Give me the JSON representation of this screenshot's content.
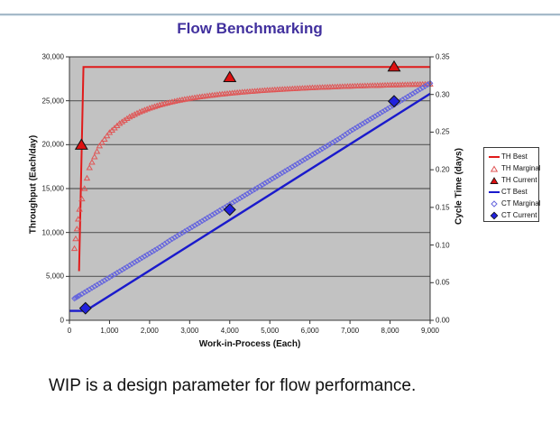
{
  "caption": "WIP is a design parameter for flow performance.",
  "colors": {
    "title": "#41309e",
    "plot_bg": "#c2c2c2",
    "grid": "#5a5a5a",
    "plot_border": "#3a3a3a",
    "red": "#e01a1a",
    "red_light": "#e05555",
    "blue": "#1a1acc",
    "blue_light": "#6666dd"
  },
  "chart_data": {
    "type": "line",
    "title": "Flow Benchmarking",
    "grid": "horizontal",
    "legend_position": "right",
    "x_axis": {
      "label": "Work-in-Process (Each)",
      "min": 0,
      "max": 9000,
      "tick_labels": [
        "0",
        "1,000",
        "2,000",
        "3,000",
        "4,000",
        "5,000",
        "6,000",
        "7,000",
        "8,000",
        "9,000"
      ]
    },
    "y_left_axis": {
      "label": "Throughput (Each/day)",
      "min": 0,
      "max": 30000,
      "tick_labels": [
        "0",
        "5,000",
        "10,000",
        "15,000",
        "20,000",
        "25,000",
        "30,000"
      ]
    },
    "y_right_axis": {
      "label": "Cycle Time (days)",
      "min": 0,
      "max": 0.35,
      "tick_labels": [
        "0.00",
        "0.05",
        "0.10",
        "0.15",
        "0.20",
        "0.25",
        "0.30",
        "0.35"
      ]
    },
    "series": [
      {
        "name": "TH Best",
        "axis": "left",
        "style": "line",
        "marker": "line",
        "color": "#e01a1a",
        "width": 2,
        "points": [
          [
            240,
            5600
          ],
          [
            350,
            28850
          ],
          [
            9000,
            28850
          ]
        ]
      },
      {
        "name": "TH Marginal",
        "axis": "left",
        "style": "markers",
        "marker": "triangle-open",
        "color": "#e05555",
        "points": [
          [
            125,
            8180
          ],
          [
            250,
            12640
          ],
          [
            500,
            17380
          ],
          [
            750,
            19860
          ],
          [
            1000,
            21390
          ],
          [
            1250,
            22420
          ],
          [
            1500,
            23170
          ],
          [
            1750,
            23730
          ],
          [
            2000,
            24170
          ],
          [
            2250,
            24530
          ],
          [
            2500,
            24820
          ],
          [
            2750,
            25070
          ],
          [
            3000,
            25270
          ],
          [
            3250,
            25450
          ],
          [
            3500,
            25600
          ],
          [
            3750,
            25740
          ],
          [
            4000,
            25860
          ],
          [
            4250,
            25970
          ],
          [
            4500,
            26060
          ],
          [
            4750,
            26150
          ],
          [
            5000,
            26230
          ],
          [
            5250,
            26300
          ],
          [
            5500,
            26360
          ],
          [
            5750,
            26420
          ],
          [
            6000,
            26480
          ],
          [
            6250,
            26530
          ],
          [
            6500,
            26570
          ],
          [
            6750,
            26620
          ],
          [
            7000,
            26660
          ],
          [
            7250,
            26700
          ],
          [
            7500,
            26730
          ],
          [
            7750,
            26760
          ],
          [
            8000,
            26800
          ],
          [
            8250,
            26820
          ],
          [
            8500,
            26850
          ],
          [
            8750,
            26880
          ],
          [
            9000,
            26900
          ]
        ]
      },
      {
        "name": "TH Current",
        "axis": "left",
        "style": "markers",
        "marker": "triangle-filled",
        "color": "#dd1111",
        "points": [
          [
            300,
            20000
          ],
          [
            4000,
            27700
          ],
          [
            8100,
            28900
          ]
        ]
      },
      {
        "name": "CT Best",
        "axis": "right",
        "style": "line",
        "marker": "line",
        "color": "#1a1acc",
        "width": 2.4,
        "points": [
          [
            0,
            0.0125
          ],
          [
            400,
            0.0125
          ],
          [
            9000,
            0.301
          ]
        ]
      },
      {
        "name": "CT Marginal",
        "axis": "right",
        "style": "markers",
        "marker": "diamond-open",
        "color": "#6666dd",
        "points": [
          [
            125,
            0.029
          ],
          [
            250,
            0.033
          ],
          [
            500,
            0.041
          ],
          [
            750,
            0.049
          ],
          [
            1000,
            0.057
          ],
          [
            1250,
            0.065
          ],
          [
            1500,
            0.073
          ],
          [
            1750,
            0.081
          ],
          [
            2000,
            0.089
          ],
          [
            2250,
            0.097
          ],
          [
            2500,
            0.106
          ],
          [
            2750,
            0.114
          ],
          [
            3000,
            0.122
          ],
          [
            3250,
            0.13
          ],
          [
            3500,
            0.138
          ],
          [
            3750,
            0.146
          ],
          [
            4000,
            0.154
          ],
          [
            4250,
            0.162
          ],
          [
            4500,
            0.17
          ],
          [
            4750,
            0.178
          ],
          [
            5000,
            0.186
          ],
          [
            5250,
            0.194
          ],
          [
            5500,
            0.202
          ],
          [
            5750,
            0.21
          ],
          [
            6000,
            0.218
          ],
          [
            6250,
            0.226
          ],
          [
            6500,
            0.234
          ],
          [
            6750,
            0.242
          ],
          [
            7000,
            0.251
          ],
          [
            7250,
            0.259
          ],
          [
            7500,
            0.267
          ],
          [
            7750,
            0.275
          ],
          [
            8000,
            0.283
          ],
          [
            8250,
            0.291
          ],
          [
            8500,
            0.299
          ],
          [
            8750,
            0.307
          ],
          [
            9000,
            0.315
          ]
        ]
      },
      {
        "name": "CT Current",
        "axis": "right",
        "style": "markers",
        "marker": "diamond-filled",
        "color": "#2222dd",
        "points": [
          [
            400,
            0.016
          ],
          [
            4000,
            0.147
          ],
          [
            8100,
            0.291
          ]
        ]
      }
    ]
  }
}
